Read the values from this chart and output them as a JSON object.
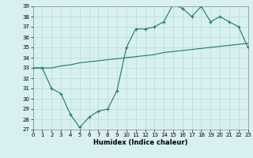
{
  "xlabel": "Humidex (Indice chaleur)",
  "x": [
    0,
    1,
    2,
    3,
    4,
    5,
    6,
    7,
    8,
    9,
    10,
    11,
    12,
    13,
    14,
    15,
    16,
    17,
    18,
    19,
    20,
    21,
    22,
    23
  ],
  "humidex": [
    33,
    33,
    31,
    30.5,
    28.5,
    27.2,
    28.2,
    28.8,
    29,
    30.8,
    35,
    36.8,
    36.8,
    37,
    37.5,
    39.2,
    38.8,
    38,
    39,
    37.5,
    38,
    37.5,
    37,
    35
  ],
  "line2": [
    33,
    33,
    33,
    33.2,
    33.3,
    33.5,
    33.6,
    33.7,
    33.8,
    33.9,
    34,
    34.1,
    34.2,
    34.3,
    34.5,
    34.6,
    34.7,
    34.8,
    34.9,
    35,
    35.1,
    35.2,
    35.3,
    35.4
  ],
  "color": "#1a7a6e",
  "bg_color": "#d8f0f0",
  "grid_color": "#b8dada",
  "ylim": [
    27,
    39
  ],
  "yticks": [
    27,
    28,
    29,
    30,
    31,
    32,
    33,
    34,
    35,
    36,
    37,
    38,
    39
  ],
  "xlim": [
    0,
    23
  ],
  "tick_fontsize": 5,
  "xlabel_fontsize": 6
}
